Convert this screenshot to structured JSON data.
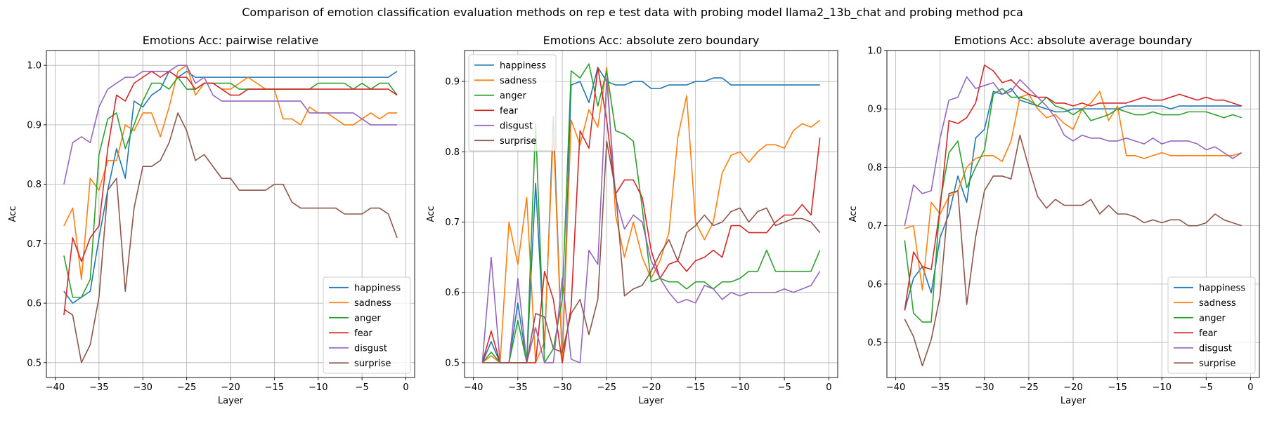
{
  "figure": {
    "suptitle": "Comparison of emotion classification evaluation methods on rep e test data with probing model llama2_13b_chat and probing method pca"
  },
  "colors": {
    "happiness": "#1f77b4",
    "sadness": "#ff7f0e",
    "anger": "#2ca02c",
    "fear": "#d62728",
    "disgust": "#9467bd",
    "surprise": "#8c564b"
  },
  "chart_data": [
    {
      "type": "line",
      "title": "Emotions Acc: pairwise relative",
      "xlabel": "Layer",
      "ylabel": "Acc",
      "xlim": [
        -41,
        1
      ],
      "ylim": [
        0.475,
        1.025
      ],
      "xticks": [
        -40,
        -35,
        -30,
        -25,
        -20,
        -15,
        -10,
        -5,
        0
      ],
      "yticks": [
        0.5,
        0.6,
        0.7,
        0.8,
        0.9,
        1.0
      ],
      "ytick_labels": [
        "0.5",
        "0.6",
        "0.7",
        "0.8",
        "0.9",
        "1.0"
      ],
      "grid": true,
      "legend_loc": "lower-right",
      "x": [
        -39,
        -38,
        -37,
        -36,
        -35,
        -34,
        -33,
        -32,
        -31,
        -30,
        -29,
        -28,
        -27,
        -26,
        -25,
        -24,
        -23,
        -22,
        -21,
        -20,
        -19,
        -18,
        -17,
        -16,
        -15,
        -14,
        -13,
        -12,
        -11,
        -10,
        -9,
        -8,
        -7,
        -6,
        -5,
        -4,
        -3,
        -2,
        -1
      ],
      "series": [
        {
          "name": "happiness",
          "values": [
            0.62,
            0.6,
            0.61,
            0.62,
            0.71,
            0.79,
            0.86,
            0.81,
            0.94,
            0.93,
            0.95,
            0.96,
            0.99,
            0.98,
            0.99,
            0.98,
            0.98,
            0.98,
            0.98,
            0.98,
            0.98,
            0.98,
            0.98,
            0.98,
            0.98,
            0.98,
            0.98,
            0.98,
            0.98,
            0.98,
            0.98,
            0.98,
            0.98,
            0.98,
            0.98,
            0.98,
            0.98,
            0.98,
            0.99
          ]
        },
        {
          "name": "sadness",
          "values": [
            0.73,
            0.76,
            0.64,
            0.81,
            0.79,
            0.84,
            0.84,
            0.9,
            0.89,
            0.92,
            0.92,
            0.88,
            0.93,
            0.99,
            1.0,
            0.95,
            0.97,
            0.97,
            0.96,
            0.96,
            0.97,
            0.98,
            0.97,
            0.96,
            0.96,
            0.91,
            0.91,
            0.9,
            0.93,
            0.92,
            0.92,
            0.91,
            0.9,
            0.9,
            0.91,
            0.92,
            0.91,
            0.92,
            0.92
          ]
        },
        {
          "name": "anger",
          "values": [
            0.68,
            0.61,
            0.61,
            0.64,
            0.85,
            0.91,
            0.92,
            0.86,
            0.9,
            0.94,
            0.97,
            0.97,
            0.96,
            0.98,
            0.96,
            0.96,
            0.97,
            0.97,
            0.97,
            0.97,
            0.96,
            0.96,
            0.96,
            0.96,
            0.96,
            0.96,
            0.96,
            0.96,
            0.96,
            0.97,
            0.97,
            0.97,
            0.97,
            0.96,
            0.97,
            0.96,
            0.97,
            0.97,
            0.95
          ]
        },
        {
          "name": "fear",
          "values": [
            0.58,
            0.71,
            0.67,
            0.71,
            0.73,
            0.86,
            0.95,
            0.94,
            0.97,
            0.98,
            0.99,
            0.98,
            0.99,
            0.98,
            0.98,
            0.96,
            0.97,
            0.97,
            0.96,
            0.95,
            0.95,
            0.96,
            0.96,
            0.96,
            0.96,
            0.96,
            0.96,
            0.96,
            0.96,
            0.96,
            0.96,
            0.96,
            0.96,
            0.96,
            0.96,
            0.96,
            0.96,
            0.96,
            0.95
          ]
        },
        {
          "name": "disgust",
          "values": [
            0.8,
            0.87,
            0.88,
            0.87,
            0.93,
            0.96,
            0.97,
            0.98,
            0.98,
            0.99,
            0.99,
            0.99,
            0.99,
            1.0,
            1.0,
            0.97,
            0.98,
            0.95,
            0.94,
            0.94,
            0.94,
            0.94,
            0.94,
            0.94,
            0.94,
            0.94,
            0.94,
            0.94,
            0.92,
            0.92,
            0.92,
            0.92,
            0.92,
            0.92,
            0.91,
            0.9,
            0.9,
            0.9,
            0.9
          ]
        },
        {
          "name": "surprise",
          "values": [
            0.59,
            0.58,
            0.5,
            0.53,
            0.61,
            0.79,
            0.81,
            0.62,
            0.76,
            0.83,
            0.83,
            0.84,
            0.87,
            0.92,
            0.89,
            0.84,
            0.85,
            0.83,
            0.81,
            0.81,
            0.79,
            0.79,
            0.79,
            0.79,
            0.8,
            0.8,
            0.77,
            0.76,
            0.76,
            0.76,
            0.76,
            0.76,
            0.75,
            0.75,
            0.75,
            0.76,
            0.76,
            0.75,
            0.71
          ]
        }
      ]
    },
    {
      "type": "line",
      "title": "Emotions Acc: absolute zero boundary",
      "xlabel": "Layer",
      "ylabel": "Acc",
      "xlim": [
        -41,
        1
      ],
      "ylim": [
        0.479,
        0.944
      ],
      "xticks": [
        -40,
        -35,
        -30,
        -25,
        -20,
        -15,
        -10,
        -5,
        0
      ],
      "yticks": [
        0.5,
        0.6,
        0.7,
        0.8,
        0.9
      ],
      "ytick_labels": [
        "0.5",
        "0.6",
        "0.7",
        "0.8",
        "0.9"
      ],
      "grid": true,
      "legend_loc": "upper-left",
      "x": [
        -39,
        -38,
        -37,
        -36,
        -35,
        -34,
        -33,
        -32,
        -31,
        -30,
        -29,
        -28,
        -27,
        -26,
        -25,
        -24,
        -23,
        -22,
        -21,
        -20,
        -19,
        -18,
        -17,
        -16,
        -15,
        -14,
        -13,
        -12,
        -11,
        -10,
        -9,
        -8,
        -7,
        -6,
        -5,
        -4,
        -3,
        -2,
        -1
      ],
      "series": [
        {
          "name": "happiness",
          "values": [
            0.5,
            0.53,
            0.5,
            0.5,
            0.585,
            0.5,
            0.755,
            0.52,
            0.85,
            0.5,
            0.895,
            0.9,
            0.87,
            0.92,
            0.9,
            0.895,
            0.895,
            0.9,
            0.9,
            0.89,
            0.89,
            0.895,
            0.895,
            0.895,
            0.9,
            0.9,
            0.905,
            0.905,
            0.895,
            0.895,
            0.895,
            0.895,
            0.895,
            0.895,
            0.895,
            0.895,
            0.895,
            0.895,
            0.895
          ]
        },
        {
          "name": "sadness",
          "values": [
            0.5,
            0.51,
            0.5,
            0.7,
            0.64,
            0.735,
            0.5,
            0.53,
            0.83,
            0.5,
            0.845,
            0.81,
            0.86,
            0.835,
            0.92,
            0.71,
            0.65,
            0.7,
            0.65,
            0.62,
            0.645,
            0.685,
            0.82,
            0.88,
            0.7,
            0.675,
            0.7,
            0.77,
            0.795,
            0.8,
            0.785,
            0.8,
            0.81,
            0.81,
            0.805,
            0.83,
            0.84,
            0.835,
            0.845
          ]
        },
        {
          "name": "anger",
          "values": [
            0.5,
            0.515,
            0.5,
            0.5,
            0.56,
            0.5,
            0.84,
            0.5,
            0.52,
            0.59,
            0.915,
            0.905,
            0.925,
            0.865,
            0.915,
            0.83,
            0.825,
            0.815,
            0.72,
            0.615,
            0.62,
            0.615,
            0.615,
            0.605,
            0.615,
            0.615,
            0.605,
            0.615,
            0.615,
            0.62,
            0.63,
            0.63,
            0.66,
            0.63,
            0.63,
            0.63,
            0.63,
            0.63,
            0.66
          ]
        },
        {
          "name": "fear",
          "values": [
            0.5,
            0.545,
            0.5,
            0.5,
            0.5,
            0.5,
            0.5,
            0.63,
            0.59,
            0.5,
            0.58,
            0.83,
            0.805,
            0.92,
            0.845,
            0.74,
            0.76,
            0.76,
            0.735,
            0.66,
            0.62,
            0.64,
            0.645,
            0.63,
            0.645,
            0.65,
            0.66,
            0.65,
            0.695,
            0.695,
            0.685,
            0.685,
            0.685,
            0.7,
            0.71,
            0.71,
            0.725,
            0.71,
            0.82
          ]
        },
        {
          "name": "disgust",
          "values": [
            0.5,
            0.65,
            0.5,
            0.5,
            0.62,
            0.5,
            0.55,
            0.5,
            0.5,
            0.62,
            0.505,
            0.5,
            0.66,
            0.64,
            0.905,
            0.735,
            0.69,
            0.71,
            0.7,
            0.645,
            0.62,
            0.6,
            0.585,
            0.59,
            0.585,
            0.61,
            0.605,
            0.59,
            0.6,
            0.595,
            0.6,
            0.6,
            0.6,
            0.6,
            0.605,
            0.6,
            0.605,
            0.61,
            0.63
          ]
        },
        {
          "name": "surprise",
          "values": [
            0.5,
            0.5,
            0.5,
            0.5,
            0.5,
            0.5,
            0.57,
            0.565,
            0.52,
            0.515,
            0.57,
            0.59,
            0.54,
            0.59,
            0.815,
            0.745,
            0.595,
            0.605,
            0.61,
            0.63,
            0.655,
            0.675,
            0.645,
            0.685,
            0.695,
            0.71,
            0.695,
            0.7,
            0.715,
            0.72,
            0.7,
            0.715,
            0.72,
            0.695,
            0.7,
            0.705,
            0.705,
            0.7,
            0.685
          ]
        }
      ]
    },
    {
      "type": "line",
      "title": "Emotions Acc: absolute average boundary",
      "xlabel": "Layer",
      "ylabel": "Acc",
      "xlim": [
        -41,
        1
      ],
      "ylim": [
        0.44,
        1.0
      ],
      "xticks": [
        -40,
        -35,
        -30,
        -25,
        -20,
        -15,
        -10,
        -5,
        0
      ],
      "yticks": [
        0.5,
        0.6,
        0.7,
        0.8,
        0.9,
        1.0
      ],
      "ytick_labels": [
        "0.5",
        "0.6",
        "0.7",
        "0.8",
        "0.9",
        "1.0"
      ],
      "grid": true,
      "legend_loc": "lower-right",
      "x": [
        -39,
        -38,
        -37,
        -36,
        -35,
        -34,
        -33,
        -32,
        -31,
        -30,
        -29,
        -28,
        -27,
        -26,
        -25,
        -24,
        -23,
        -22,
        -21,
        -20,
        -19,
        -18,
        -17,
        -16,
        -15,
        -14,
        -13,
        -12,
        -11,
        -10,
        -9,
        -8,
        -7,
        -6,
        -5,
        -4,
        -3,
        -2,
        -1
      ],
      "series": [
        {
          "name": "happiness",
          "values": [
            0.555,
            0.61,
            0.63,
            0.585,
            0.68,
            0.72,
            0.785,
            0.74,
            0.85,
            0.865,
            0.93,
            0.925,
            0.935,
            0.915,
            0.91,
            0.905,
            0.9,
            0.895,
            0.895,
            0.9,
            0.9,
            0.9,
            0.9,
            0.9,
            0.9,
            0.905,
            0.905,
            0.905,
            0.905,
            0.905,
            0.9,
            0.905,
            0.905,
            0.905,
            0.905,
            0.905,
            0.905,
            0.905,
            0.905
          ]
        },
        {
          "name": "sadness",
          "values": [
            0.695,
            0.7,
            0.59,
            0.74,
            0.72,
            0.75,
            0.76,
            0.8,
            0.815,
            0.82,
            0.82,
            0.81,
            0.845,
            0.92,
            0.925,
            0.9,
            0.885,
            0.89,
            0.875,
            0.865,
            0.9,
            0.91,
            0.93,
            0.88,
            0.905,
            0.82,
            0.82,
            0.815,
            0.82,
            0.825,
            0.82,
            0.82,
            0.82,
            0.82,
            0.82,
            0.82,
            0.82,
            0.82,
            0.825
          ]
        },
        {
          "name": "anger",
          "values": [
            0.675,
            0.55,
            0.535,
            0.535,
            0.74,
            0.825,
            0.845,
            0.765,
            0.8,
            0.83,
            0.925,
            0.935,
            0.92,
            0.92,
            0.915,
            0.905,
            0.92,
            0.905,
            0.9,
            0.89,
            0.9,
            0.88,
            0.885,
            0.89,
            0.9,
            0.895,
            0.89,
            0.89,
            0.895,
            0.89,
            0.89,
            0.89,
            0.895,
            0.895,
            0.895,
            0.89,
            0.885,
            0.89,
            0.885
          ]
        },
        {
          "name": "fear",
          "values": [
            0.555,
            0.655,
            0.63,
            0.625,
            0.73,
            0.88,
            0.875,
            0.885,
            0.91,
            0.975,
            0.965,
            0.945,
            0.95,
            0.935,
            0.925,
            0.92,
            0.92,
            0.91,
            0.91,
            0.905,
            0.91,
            0.905,
            0.91,
            0.91,
            0.91,
            0.91,
            0.915,
            0.92,
            0.915,
            0.915,
            0.92,
            0.925,
            0.92,
            0.915,
            0.92,
            0.915,
            0.915,
            0.91,
            0.905
          ]
        },
        {
          "name": "disgust",
          "values": [
            0.7,
            0.77,
            0.755,
            0.76,
            0.85,
            0.915,
            0.92,
            0.955,
            0.935,
            0.94,
            0.945,
            0.925,
            0.93,
            0.95,
            0.935,
            0.92,
            0.905,
            0.885,
            0.855,
            0.845,
            0.855,
            0.85,
            0.85,
            0.845,
            0.845,
            0.85,
            0.845,
            0.84,
            0.85,
            0.84,
            0.845,
            0.845,
            0.845,
            0.84,
            0.83,
            0.835,
            0.825,
            0.815,
            0.825
          ]
        },
        {
          "name": "surprise",
          "values": [
            0.54,
            0.51,
            0.46,
            0.505,
            0.58,
            0.755,
            0.76,
            0.565,
            0.68,
            0.76,
            0.785,
            0.785,
            0.78,
            0.855,
            0.8,
            0.75,
            0.73,
            0.745,
            0.735,
            0.735,
            0.735,
            0.745,
            0.72,
            0.735,
            0.72,
            0.72,
            0.715,
            0.705,
            0.71,
            0.705,
            0.71,
            0.71,
            0.7,
            0.7,
            0.705,
            0.72,
            0.71,
            0.705,
            0.7
          ]
        }
      ]
    }
  ]
}
